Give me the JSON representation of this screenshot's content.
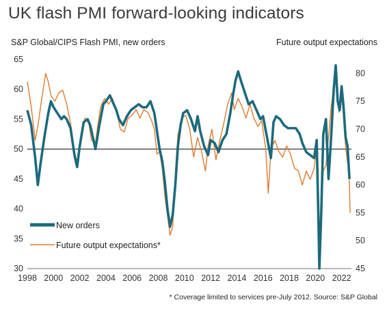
{
  "chart_data": {
    "type": "line",
    "title": "UK flash PMI forward-looking indicators",
    "left_axis_label": "S&P Global/CIPS Flash PMI, new orders",
    "right_axis_label": "Future output expectations",
    "footnote": "* Coverage limited to services pre-July 2012. Source: S&P Global",
    "xlim": [
      1998,
      2022.75
    ],
    "ylim_left": [
      30,
      65
    ],
    "ylim_right": [
      45,
      82.5
    ],
    "x_ticks": [
      "1998",
      "2000",
      "2002",
      "2004",
      "2006",
      "2008",
      "2010",
      "2012",
      "2014",
      "2016",
      "2018",
      "2020",
      "2022"
    ],
    "left_ticks": [
      "30",
      "35",
      "40",
      "45",
      "50",
      "55",
      "60",
      "65"
    ],
    "right_ticks": [
      "45",
      "50",
      "55",
      "60",
      "65",
      "70",
      "75",
      "80"
    ],
    "reference_line_left": 50,
    "legend_placement": "bottom-left",
    "colors": {
      "new_orders": "#1c6a7d",
      "future_output": "#e07b2c",
      "reference": "#000000"
    },
    "series": [
      {
        "name": "New orders",
        "axis": "left",
        "points": [
          [
            1998.0,
            56.5
          ],
          [
            1998.3,
            54.0
          ],
          [
            1998.6,
            48.5
          ],
          [
            1998.8,
            44.0
          ],
          [
            1999.0,
            47.5
          ],
          [
            1999.3,
            52.0
          ],
          [
            1999.6,
            56.0
          ],
          [
            1999.8,
            58.0
          ],
          [
            2000.0,
            57.0
          ],
          [
            2000.3,
            56.0
          ],
          [
            2000.6,
            55.0
          ],
          [
            2000.8,
            55.5
          ],
          [
            2001.0,
            55.0
          ],
          [
            2001.3,
            53.5
          ],
          [
            2001.6,
            49.0
          ],
          [
            2001.8,
            47.0
          ],
          [
            2002.0,
            50.5
          ],
          [
            2002.3,
            54.5
          ],
          [
            2002.6,
            55.0
          ],
          [
            2002.8,
            54.0
          ],
          [
            2003.0,
            52.0
          ],
          [
            2003.2,
            50.0
          ],
          [
            2003.5,
            54.0
          ],
          [
            2003.8,
            57.5
          ],
          [
            2004.0,
            58.0
          ],
          [
            2004.3,
            59.0
          ],
          [
            2004.6,
            57.5
          ],
          [
            2004.8,
            56.5
          ],
          [
            2005.0,
            55.0
          ],
          [
            2005.3,
            54.0
          ],
          [
            2005.6,
            55.5
          ],
          [
            2005.9,
            56.5
          ],
          [
            2006.2,
            57.0
          ],
          [
            2006.5,
            57.5
          ],
          [
            2006.8,
            57.0
          ],
          [
            2007.1,
            57.0
          ],
          [
            2007.4,
            58.0
          ],
          [
            2007.7,
            56.0
          ],
          [
            2007.9,
            53.0
          ],
          [
            2008.1,
            50.0
          ],
          [
            2008.3,
            48.0
          ],
          [
            2008.5,
            44.5
          ],
          [
            2008.7,
            40.0
          ],
          [
            2008.9,
            37.0
          ],
          [
            2009.1,
            39.0
          ],
          [
            2009.3,
            44.0
          ],
          [
            2009.5,
            50.5
          ],
          [
            2009.7,
            54.0
          ],
          [
            2009.9,
            56.0
          ],
          [
            2010.2,
            56.5
          ],
          [
            2010.5,
            55.0
          ],
          [
            2010.8,
            53.0
          ],
          [
            2011.0,
            55.5
          ],
          [
            2011.2,
            53.0
          ],
          [
            2011.5,
            50.5
          ],
          [
            2011.8,
            49.0
          ],
          [
            2012.0,
            51.5
          ],
          [
            2012.3,
            51.0
          ],
          [
            2012.6,
            49.5
          ],
          [
            2012.9,
            51.5
          ],
          [
            2013.2,
            52.5
          ],
          [
            2013.5,
            56.0
          ],
          [
            2013.7,
            59.0
          ],
          [
            2013.9,
            61.5
          ],
          [
            2014.1,
            63.0
          ],
          [
            2014.3,
            61.5
          ],
          [
            2014.6,
            59.5
          ],
          [
            2014.9,
            57.5
          ],
          [
            2015.2,
            58.0
          ],
          [
            2015.5,
            56.5
          ],
          [
            2015.8,
            55.0
          ],
          [
            2016.0,
            55.5
          ],
          [
            2016.3,
            52.0
          ],
          [
            2016.6,
            48.5
          ],
          [
            2016.8,
            54.5
          ],
          [
            2017.0,
            55.5
          ],
          [
            2017.3,
            55.0
          ],
          [
            2017.6,
            54.0
          ],
          [
            2017.9,
            53.5
          ],
          [
            2018.2,
            53.5
          ],
          [
            2018.5,
            53.5
          ],
          [
            2018.8,
            52.5
          ],
          [
            2019.0,
            51.0
          ],
          [
            2019.3,
            49.5
          ],
          [
            2019.6,
            49.0
          ],
          [
            2019.9,
            48.5
          ],
          [
            2020.1,
            51.5
          ],
          [
            2020.2,
            41.0
          ],
          [
            2020.3,
            30.0
          ],
          [
            2020.45,
            40.0
          ],
          [
            2020.6,
            52.5
          ],
          [
            2020.8,
            55.0
          ],
          [
            2021.0,
            45.0
          ],
          [
            2021.2,
            52.0
          ],
          [
            2021.4,
            60.0
          ],
          [
            2021.55,
            64.0
          ],
          [
            2021.7,
            58.0
          ],
          [
            2021.85,
            56.5
          ],
          [
            2022.0,
            60.5
          ],
          [
            2022.15,
            57.0
          ],
          [
            2022.3,
            52.0
          ],
          [
            2022.45,
            50.5
          ],
          [
            2022.6,
            45.0
          ]
        ]
      },
      {
        "name": "Future output expectations*",
        "axis": "right",
        "points": [
          [
            1998.0,
            78.5
          ],
          [
            1998.3,
            74.0
          ],
          [
            1998.6,
            68.0
          ],
          [
            1998.8,
            70.5
          ],
          [
            1999.1,
            75.5
          ],
          [
            1999.4,
            80.0
          ],
          [
            1999.6,
            78.5
          ],
          [
            1999.8,
            76.0
          ],
          [
            2000.1,
            75.0
          ],
          [
            2000.4,
            76.5
          ],
          [
            2000.7,
            77.0
          ],
          [
            2001.0,
            74.5
          ],
          [
            2001.3,
            71.0
          ],
          [
            2001.6,
            66.0
          ],
          [
            2001.8,
            64.0
          ],
          [
            2002.1,
            68.0
          ],
          [
            2002.4,
            72.0
          ],
          [
            2002.7,
            71.0
          ],
          [
            2002.9,
            68.0
          ],
          [
            2003.2,
            67.5
          ],
          [
            2003.4,
            71.0
          ],
          [
            2003.6,
            74.0
          ],
          [
            2003.9,
            75.5
          ],
          [
            2004.2,
            74.5
          ],
          [
            2004.5,
            75.5
          ],
          [
            2004.8,
            73.5
          ],
          [
            2005.1,
            70.0
          ],
          [
            2005.4,
            69.5
          ],
          [
            2005.7,
            72.0
          ],
          [
            2006.0,
            72.5
          ],
          [
            2006.3,
            73.5
          ],
          [
            2006.6,
            72.0
          ],
          [
            2006.9,
            73.5
          ],
          [
            2007.2,
            73.0
          ],
          [
            2007.5,
            71.5
          ],
          [
            2007.7,
            70.0
          ],
          [
            2007.9,
            65.5
          ],
          [
            2008.1,
            66.0
          ],
          [
            2008.3,
            63.0
          ],
          [
            2008.5,
            58.0
          ],
          [
            2008.7,
            54.5
          ],
          [
            2008.9,
            51.0
          ],
          [
            2009.1,
            52.5
          ],
          [
            2009.3,
            62.0
          ],
          [
            2009.5,
            69.0
          ],
          [
            2009.8,
            72.0
          ],
          [
            2010.1,
            72.5
          ],
          [
            2010.4,
            70.0
          ],
          [
            2010.7,
            65.0
          ],
          [
            2011.0,
            68.5
          ],
          [
            2011.3,
            66.0
          ],
          [
            2011.6,
            62.5
          ],
          [
            2011.8,
            67.0
          ],
          [
            2012.1,
            70.0
          ],
          [
            2012.4,
            64.5
          ],
          [
            2012.7,
            68.0
          ],
          [
            2013.0,
            71.0
          ],
          [
            2013.3,
            74.5
          ],
          [
            2013.6,
            76.5
          ],
          [
            2013.8,
            73.5
          ],
          [
            2014.1,
            75.5
          ],
          [
            2014.4,
            74.0
          ],
          [
            2014.7,
            72.0
          ],
          [
            2015.0,
            74.5
          ],
          [
            2015.3,
            72.0
          ],
          [
            2015.6,
            70.5
          ],
          [
            2015.9,
            71.5
          ],
          [
            2016.2,
            66.5
          ],
          [
            2016.4,
            58.5
          ],
          [
            2016.6,
            66.5
          ],
          [
            2016.9,
            68.0
          ],
          [
            2017.2,
            66.0
          ],
          [
            2017.5,
            65.0
          ],
          [
            2017.8,
            67.0
          ],
          [
            2018.1,
            65.5
          ],
          [
            2018.4,
            63.0
          ],
          [
            2018.7,
            62.5
          ],
          [
            2019.0,
            60.0
          ],
          [
            2019.3,
            62.5
          ],
          [
            2019.6,
            61.0
          ],
          [
            2019.9,
            63.0
          ],
          [
            2020.1,
            67.0
          ],
          [
            2020.25,
            49.5
          ],
          [
            2020.4,
            53.0
          ],
          [
            2020.6,
            62.5
          ],
          [
            2020.8,
            63.5
          ],
          [
            2021.0,
            68.5
          ],
          [
            2021.2,
            74.0
          ],
          [
            2021.4,
            77.5
          ],
          [
            2021.6,
            79.0
          ],
          [
            2021.8,
            73.0
          ],
          [
            2022.0,
            76.5
          ],
          [
            2022.15,
            72.0
          ],
          [
            2022.3,
            67.0
          ],
          [
            2022.45,
            64.0
          ],
          [
            2022.55,
            63.5
          ],
          [
            2022.65,
            55.0
          ]
        ]
      }
    ]
  }
}
